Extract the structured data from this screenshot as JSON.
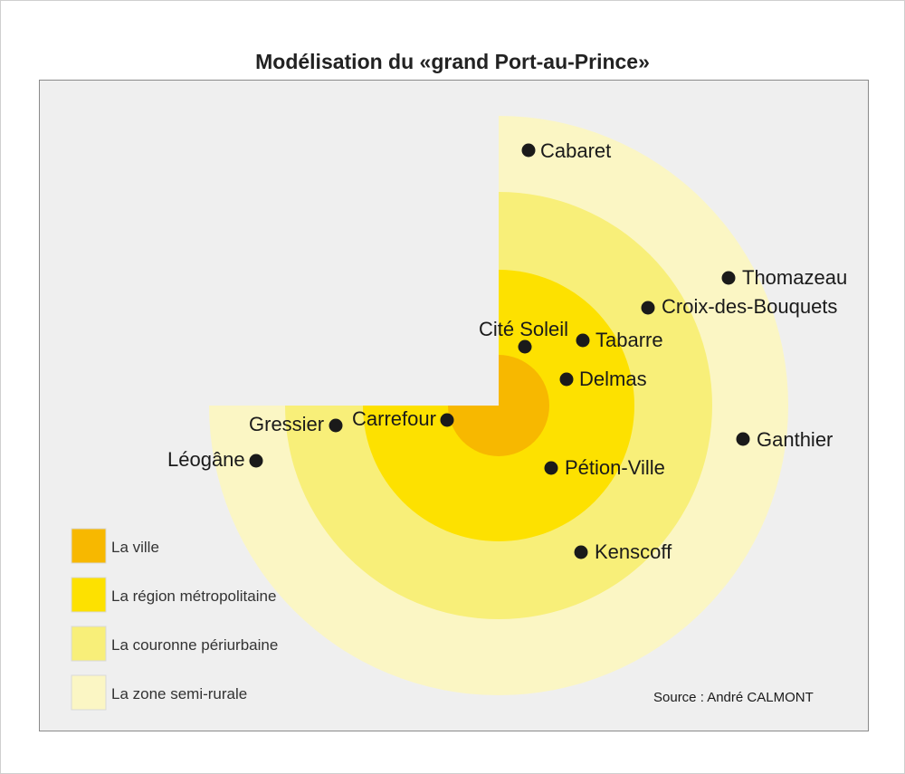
{
  "title": "Modélisation du «grand Port-au-Prince»",
  "zones": [
    {
      "name": "La zone semi-rurale",
      "color": "#fbf6c4"
    },
    {
      "name": "La couronne périurbaine",
      "color": "#f8ef79"
    },
    {
      "name": "La région métropolitaine",
      "color": "#fde100"
    },
    {
      "name": "La ville",
      "color": "#f7b800"
    }
  ],
  "legend": [
    {
      "label": "La ville",
      "color": "#f7b800"
    },
    {
      "label": "La région métropolitaine",
      "color": "#fde100"
    },
    {
      "label": "La couronne périurbaine",
      "color": "#f8ef79"
    },
    {
      "label": "La zone semi-rurale",
      "color": "#fbf6c4"
    }
  ],
  "places": [
    {
      "name": "Cabaret"
    },
    {
      "name": "Thomazeau"
    },
    {
      "name": "Croix-des-Bouquets"
    },
    {
      "name": "Cité Soleil"
    },
    {
      "name": "Tabarre"
    },
    {
      "name": "Delmas"
    },
    {
      "name": "Carrefour"
    },
    {
      "name": "Gressier"
    },
    {
      "name": "Léogâne"
    },
    {
      "name": "Ganthier"
    },
    {
      "name": "Pétion-Ville"
    },
    {
      "name": "Kenscoff"
    }
  ],
  "source": "Source : André CALMONT"
}
